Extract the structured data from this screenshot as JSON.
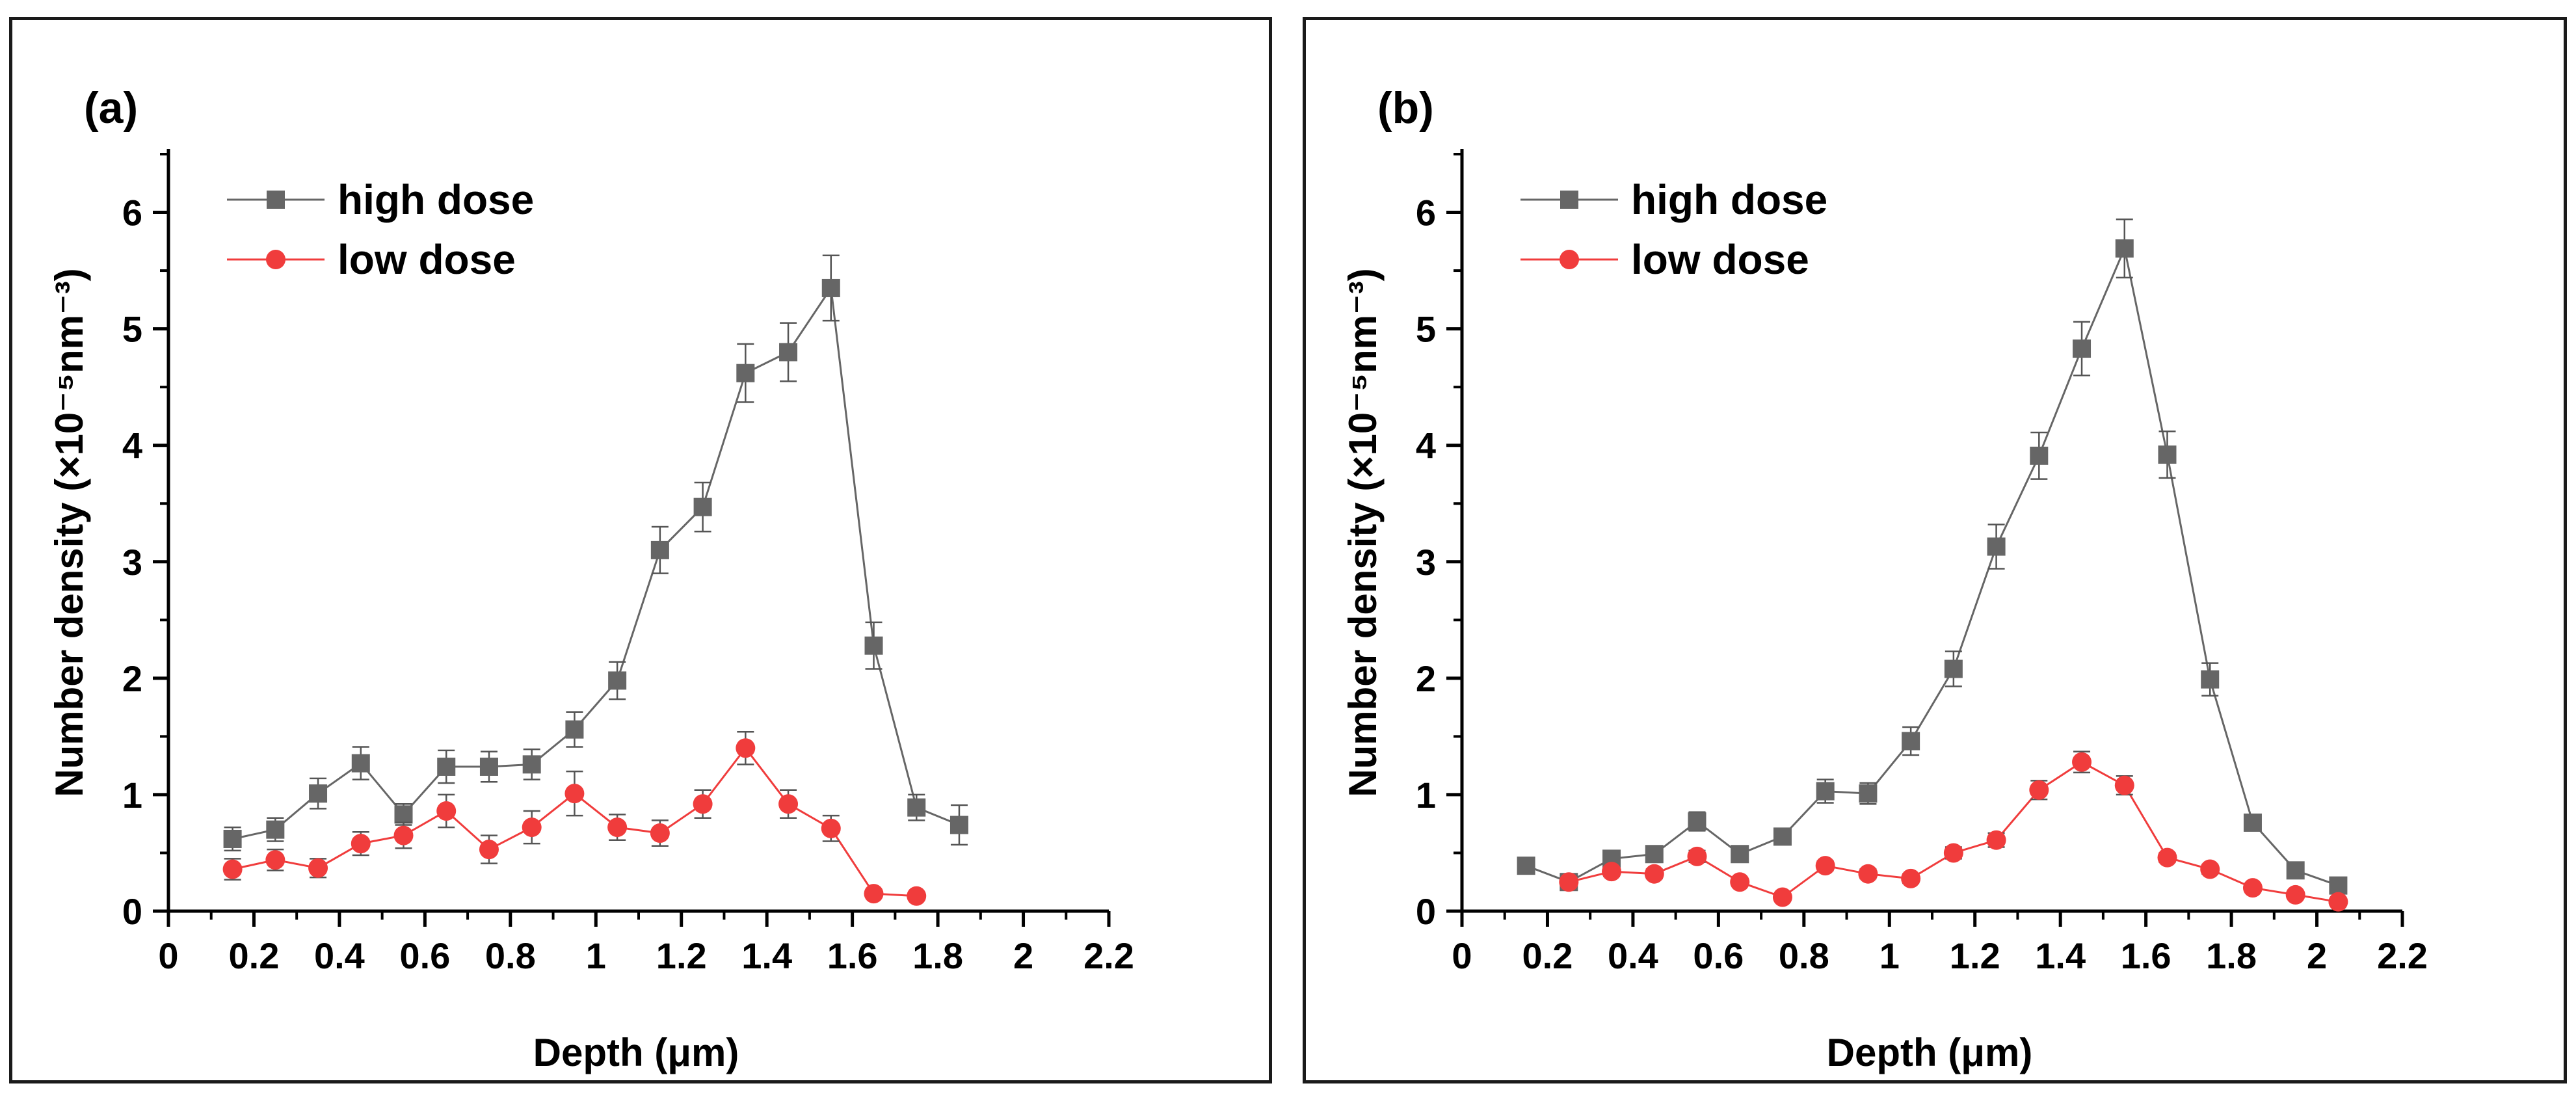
{
  "chart_data": [
    {
      "type": "line",
      "panel_label": "(a)",
      "xlabel": "Depth (μm)",
      "ylabel": "Number density (×10⁻⁵nm⁻³)",
      "xlim": [
        0,
        2.2
      ],
      "ylim": [
        0,
        6.5
      ],
      "xticks": [
        0,
        0.2,
        0.4,
        0.6,
        0.8,
        1,
        1.2,
        1.4,
        1.6,
        1.8,
        2,
        2.2
      ],
      "xtick_labels": [
        "0",
        "0.2",
        "0.4",
        "0.6",
        "0.8",
        "1",
        "1.2",
        "1.4",
        "1.6",
        "1.8",
        "2",
        "2.2"
      ],
      "yticks": [
        0,
        1,
        2,
        3,
        4,
        5,
        6
      ],
      "ytick_labels": [
        "0",
        "1",
        "2",
        "3",
        "4",
        "5",
        "6"
      ],
      "legend_position": "top-left",
      "series": [
        {
          "name": "high dose",
          "marker": "square",
          "color": "#666666",
          "x": [
            0.15,
            0.25,
            0.35,
            0.45,
            0.55,
            0.65,
            0.75,
            0.85,
            0.95,
            1.05,
            1.15,
            1.25,
            1.35,
            1.45,
            1.55,
            1.65,
            1.75,
            1.85
          ],
          "y": [
            0.62,
            0.7,
            1.01,
            1.27,
            0.83,
            1.24,
            1.24,
            1.26,
            1.56,
            1.98,
            3.1,
            3.47,
            4.62,
            4.8,
            5.35,
            2.28,
            0.89,
            0.74
          ],
          "err": [
            0.1,
            0.1,
            0.13,
            0.14,
            0.09,
            0.14,
            0.13,
            0.13,
            0.15,
            0.16,
            0.2,
            0.21,
            0.25,
            0.25,
            0.28,
            0.2,
            0.11,
            0.17
          ]
        },
        {
          "name": "low dose",
          "marker": "circle",
          "color": "#f03c3c",
          "x": [
            0.15,
            0.25,
            0.35,
            0.45,
            0.55,
            0.65,
            0.75,
            0.85,
            0.95,
            1.05,
            1.15,
            1.25,
            1.35,
            1.45,
            1.55,
            1.65,
            1.75
          ],
          "y": [
            0.36,
            0.44,
            0.37,
            0.58,
            0.65,
            0.86,
            0.53,
            0.72,
            1.01,
            0.72,
            0.67,
            0.92,
            1.4,
            0.92,
            0.71,
            0.15,
            0.13
          ],
          "err": [
            0.09,
            0.09,
            0.08,
            0.1,
            0.11,
            0.14,
            0.12,
            0.14,
            0.19,
            0.11,
            0.11,
            0.12,
            0.14,
            0.12,
            0.11,
            0.03,
            0.02
          ]
        }
      ]
    },
    {
      "type": "line",
      "panel_label": "(b)",
      "xlabel": "Depth (μm)",
      "ylabel": "Number density (×10⁻⁵nm⁻³)",
      "xlim": [
        0,
        2.2
      ],
      "ylim": [
        0,
        6.5
      ],
      "xticks": [
        0,
        0.2,
        0.4,
        0.6,
        0.8,
        1,
        1.2,
        1.4,
        1.6,
        1.8,
        2,
        2.2
      ],
      "xtick_labels": [
        "0",
        "0.2",
        "0.4",
        "0.6",
        "0.8",
        "1",
        "1.2",
        "1.4",
        "1.6",
        "1.8",
        "2",
        "2.2"
      ],
      "yticks": [
        0,
        1,
        2,
        3,
        4,
        5,
        6
      ],
      "ytick_labels": [
        "0",
        "1",
        "2",
        "3",
        "4",
        "5",
        "6"
      ],
      "legend_position": "top-left",
      "series": [
        {
          "name": "high dose",
          "marker": "square",
          "color": "#666666",
          "x": [
            0.15,
            0.25,
            0.35,
            0.45,
            0.55,
            0.65,
            0.75,
            0.85,
            0.95,
            1.05,
            1.15,
            1.25,
            1.35,
            1.45,
            1.55,
            1.65,
            1.75,
            1.85,
            1.95,
            2.05
          ],
          "y": [
            0.39,
            0.25,
            0.45,
            0.49,
            0.77,
            0.49,
            0.64,
            1.03,
            1.01,
            1.46,
            2.08,
            3.13,
            3.91,
            4.83,
            5.69,
            3.92,
            1.99,
            0.76,
            0.35,
            0.22
          ],
          "err": [
            0.05,
            0.04,
            0.05,
            0.05,
            0.08,
            0.05,
            0.06,
            0.1,
            0.09,
            0.12,
            0.15,
            0.19,
            0.2,
            0.23,
            0.25,
            0.2,
            0.14,
            0.07,
            0.04,
            0.03
          ]
        },
        {
          "name": "low dose",
          "marker": "circle",
          "color": "#f03c3c",
          "x": [
            0.25,
            0.35,
            0.45,
            0.55,
            0.65,
            0.75,
            0.85,
            0.95,
            1.05,
            1.15,
            1.25,
            1.35,
            1.45,
            1.55,
            1.65,
            1.75,
            1.85,
            1.95,
            2.05
          ],
          "y": [
            0.25,
            0.34,
            0.32,
            0.47,
            0.25,
            0.12,
            0.39,
            0.32,
            0.28,
            0.5,
            0.61,
            1.04,
            1.28,
            1.08,
            0.46,
            0.36,
            0.2,
            0.14,
            0.08
          ],
          "err": [
            0.03,
            0.04,
            0.04,
            0.05,
            0.03,
            0.02,
            0.04,
            0.04,
            0.04,
            0.05,
            0.06,
            0.08,
            0.09,
            0.08,
            0.04,
            0.04,
            0.03,
            0.02,
            0.01
          ]
        }
      ]
    }
  ]
}
